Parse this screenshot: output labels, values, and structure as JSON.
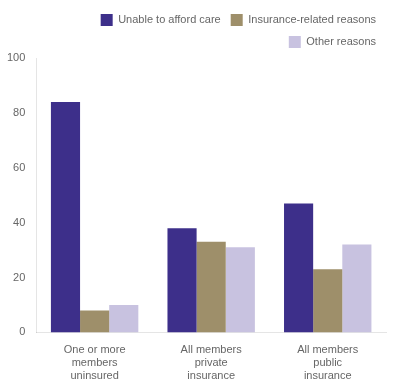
{
  "chart_data": {
    "type": "bar",
    "categories": [
      "One or more\nmembers\nuninsured",
      "All members\nprivate\ninsurance",
      "All members\npublic\ninsurance"
    ],
    "series": [
      {
        "name": "Unable to afford care",
        "color": "#3d2f8a",
        "values": [
          84,
          38,
          47
        ]
      },
      {
        "name": "Insurance-related reasons",
        "color": "#9e8f6a",
        "values": [
          8,
          33,
          23
        ]
      },
      {
        "name": "Other reasons",
        "color": "#c8c2e0",
        "values": [
          10,
          31,
          32
        ]
      }
    ],
    "ylim": [
      0,
      100
    ],
    "yticks": [
      0,
      20,
      40,
      60,
      80,
      100
    ],
    "grid": false,
    "legend": "upper right"
  }
}
